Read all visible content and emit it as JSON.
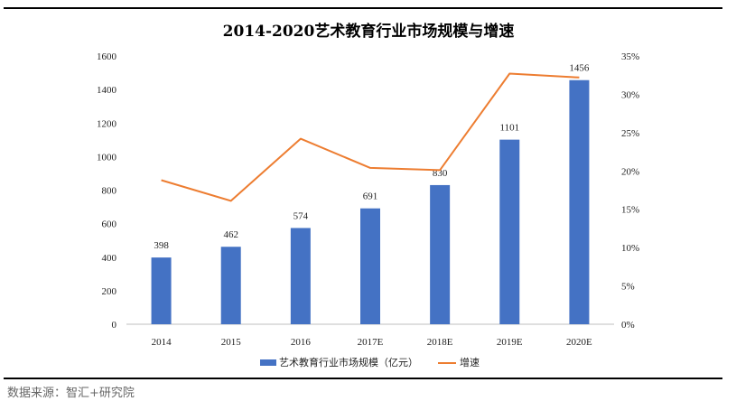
{
  "chart_data": {
    "type": "bar+line",
    "title": "2014-2020艺术教育行业市场规模与增速",
    "categories": [
      "2014",
      "2015",
      "2016",
      "2017E",
      "2018E",
      "2019E",
      "2020E"
    ],
    "series": [
      {
        "name": "艺术教育行业市场规模（亿元）",
        "type": "bar",
        "axis": "left",
        "color": "#4472C4",
        "values": [
          398,
          462,
          574,
          691,
          830,
          1101,
          1456
        ]
      },
      {
        "name": "增速",
        "type": "line",
        "axis": "right",
        "color": "#ED7D31",
        "values": [
          18.8,
          16.1,
          24.2,
          20.4,
          20.1,
          32.7,
          32.2
        ]
      }
    ],
    "y_left": {
      "min": 0,
      "max": 1600,
      "ticks": [
        "0",
        "200",
        "400",
        "600",
        "800",
        "1000",
        "1200",
        "1400",
        "1600"
      ]
    },
    "y_right": {
      "min": 0,
      "max": 35,
      "ticks": [
        "0%",
        "5%",
        "10%",
        "15%",
        "20%",
        "25%",
        "30%",
        "35%"
      ]
    },
    "grid": false,
    "legend_position": "bottom"
  },
  "source_note": "数据来源：智汇+研究院"
}
